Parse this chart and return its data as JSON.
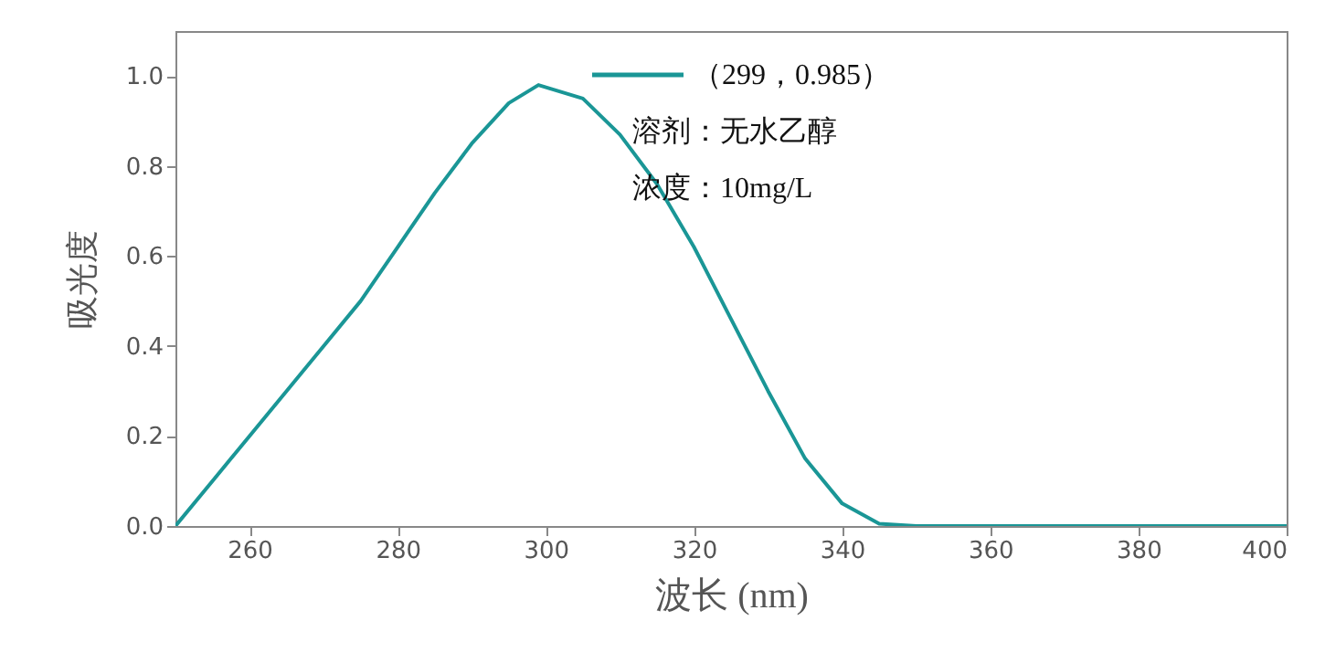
{
  "chart_data": {
    "type": "line",
    "xlabel": "波长 (nm)",
    "ylabel": "吸光度",
    "x": [
      250,
      255,
      260,
      265,
      270,
      275,
      280,
      285,
      290,
      295,
      299,
      305,
      310,
      315,
      320,
      325,
      330,
      335,
      340,
      345,
      350,
      360,
      380,
      400
    ],
    "series": [
      {
        "color": "#1a9696",
        "values": [
          0,
          0.1,
          0.2,
          0.3,
          0.4,
          0.5,
          0.62,
          0.74,
          0.85,
          0.94,
          0.98,
          0.95,
          0.87,
          0.76,
          0.62,
          0.46,
          0.3,
          0.15,
          0.05,
          0.005,
          0,
          0,
          0,
          0
        ]
      }
    ],
    "xlim": [
      250,
      400
    ],
    "xticks": [
      260,
      280,
      300,
      320,
      340,
      360,
      380,
      400
    ],
    "ylim": [
      0,
      1.1
    ],
    "yticks": [
      {
        "value": 0,
        "label": "0.0"
      },
      {
        "value": 0.2,
        "label": "0.2"
      },
      {
        "value": 0.4,
        "label": "0.4"
      },
      {
        "value": 0.6,
        "label": "0.6"
      },
      {
        "value": 0.8,
        "label": "0.8"
      },
      {
        "value": 1.0,
        "label": "1.0"
      }
    ],
    "annotations": [
      "（299，0.985）",
      "溶剂：无水乙醇",
      "浓度：10mg/L"
    ]
  }
}
